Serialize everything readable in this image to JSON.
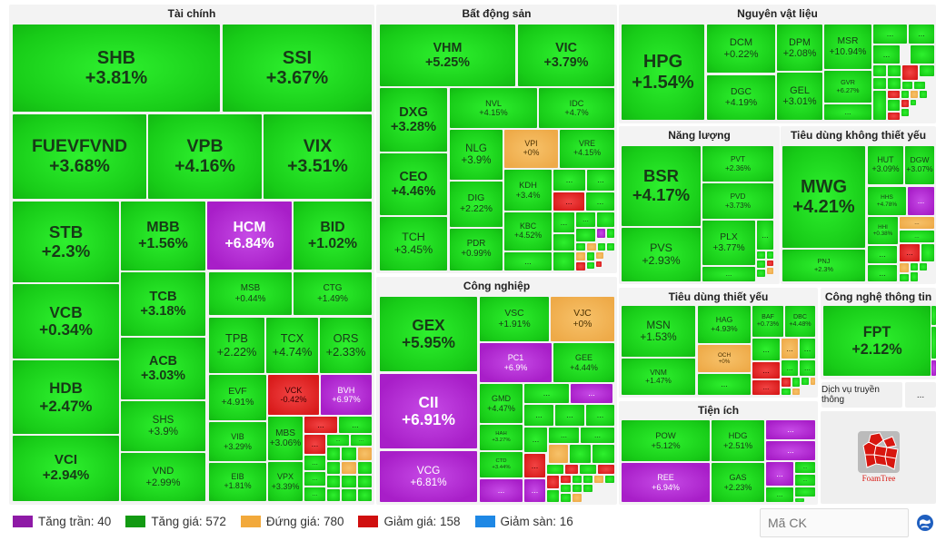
{
  "colors": {
    "ceiling": "#a81ec8",
    "up": "#18cc18",
    "flat": "#eeaa48",
    "down": "#d81a1a",
    "floor": "#1e88e5"
  },
  "groups": [
    {
      "id": "tai-chinh",
      "title": "Tài chính",
      "tiles": [
        {
          "t": "SHB",
          "c": "+3.81%",
          "s": "g"
        },
        {
          "t": "SSI",
          "c": "+3.67%",
          "s": "g"
        },
        {
          "t": "FUEVFVND",
          "c": "+3.68%",
          "s": "g"
        },
        {
          "t": "VPB",
          "c": "+4.16%",
          "s": "g"
        },
        {
          "t": "VIX",
          "c": "+3.51%",
          "s": "g"
        },
        {
          "t": "STB",
          "c": "+2.3%",
          "s": "g"
        },
        {
          "t": "VCB",
          "c": "+0.34%",
          "s": "g"
        },
        {
          "t": "HDB",
          "c": "+2.47%",
          "s": "g"
        },
        {
          "t": "VCI",
          "c": "+2.94%",
          "s": "g"
        },
        {
          "t": "MBB",
          "c": "+1.56%",
          "s": "g"
        },
        {
          "t": "TCB",
          "c": "+3.18%",
          "s": "g"
        },
        {
          "t": "ACB",
          "c": "+3.03%",
          "s": "g"
        },
        {
          "t": "SHS",
          "c": "+3.9%",
          "s": "g"
        },
        {
          "t": "VND",
          "c": "+2.99%",
          "s": "g"
        },
        {
          "t": "HCM",
          "c": "+6.84%",
          "s": "p"
        },
        {
          "t": "BID",
          "c": "+1.02%",
          "s": "g"
        },
        {
          "t": "MSB",
          "c": "+0.44%",
          "s": "g"
        },
        {
          "t": "CTG",
          "c": "+1.49%",
          "s": "g"
        },
        {
          "t": "TPB",
          "c": "+2.22%",
          "s": "g"
        },
        {
          "t": "TCX",
          "c": "+4.74%",
          "s": "g"
        },
        {
          "t": "ORS",
          "c": "+2.33%",
          "s": "g"
        },
        {
          "t": "EVF",
          "c": "+4.91%",
          "s": "g"
        },
        {
          "t": "VCK",
          "c": "-0.42%",
          "s": "r"
        },
        {
          "t": "BVH",
          "c": "+6.97%",
          "s": "p"
        },
        {
          "t": "VIB",
          "c": "+3.29%",
          "s": "g"
        },
        {
          "t": "EIB",
          "c": "+1.81%",
          "s": "g"
        },
        {
          "t": "MBS",
          "c": "+3.06%",
          "s": "g"
        },
        {
          "t": "VPX",
          "c": "+3.39%",
          "s": "g"
        },
        {
          "t": "...",
          "c": "",
          "s": "r"
        },
        {
          "t": "...",
          "c": "",
          "s": "g"
        },
        {
          "t": "...",
          "c": "",
          "s": "r"
        },
        {
          "t": "...",
          "c": "",
          "s": "g"
        },
        {
          "t": "...",
          "c": "",
          "s": "g"
        },
        {
          "t": "...",
          "c": "",
          "s": "g"
        },
        {
          "t": "...",
          "c": "",
          "s": "g"
        },
        {
          "t": "...",
          "c": "",
          "s": "g"
        }
      ]
    },
    {
      "id": "bat-dong-san",
      "title": "Bất động sản",
      "tiles": [
        {
          "t": "VHM",
          "c": "+5.25%",
          "s": "g"
        },
        {
          "t": "VIC",
          "c": "+3.79%",
          "s": "g"
        },
        {
          "t": "DXG",
          "c": "+3.28%",
          "s": "g"
        },
        {
          "t": "CEO",
          "c": "+4.46%",
          "s": "g"
        },
        {
          "t": "TCH",
          "c": "+3.45%",
          "s": "g"
        },
        {
          "t": "NVL",
          "c": "+4.15%",
          "s": "g"
        },
        {
          "t": "IDC",
          "c": "+4.7%",
          "s": "g"
        },
        {
          "t": "NLG",
          "c": "+3.9%",
          "s": "g"
        },
        {
          "t": "VPI",
          "c": "+0%",
          "s": "o"
        },
        {
          "t": "VRE",
          "c": "+4.15%",
          "s": "g"
        },
        {
          "t": "DIG",
          "c": "+2.22%",
          "s": "g"
        },
        {
          "t": "PDR",
          "c": "+0.99%",
          "s": "g"
        },
        {
          "t": "KDH",
          "c": "+3.4%",
          "s": "g"
        },
        {
          "t": "KBC",
          "c": "+4.52%",
          "s": "g"
        },
        {
          "t": "...",
          "c": "",
          "s": "g"
        },
        {
          "t": "...",
          "c": "",
          "s": "g"
        },
        {
          "t": "...",
          "c": "",
          "s": "g"
        },
        {
          "t": "...",
          "c": "",
          "s": "r"
        },
        {
          "t": "...",
          "c": "",
          "s": "g"
        },
        {
          "t": "...",
          "c": "",
          "s": "g"
        },
        {
          "t": "...",
          "c": "",
          "s": "g"
        }
      ]
    },
    {
      "id": "nguyen-vat-lieu",
      "title": "Nguyên vật liệu",
      "tiles": [
        {
          "t": "HPG",
          "c": "+1.54%",
          "s": "g"
        },
        {
          "t": "DCM",
          "c": "+0.22%",
          "s": "g"
        },
        {
          "t": "DGC",
          "c": "+4.19%",
          "s": "g"
        },
        {
          "t": "DPM",
          "c": "+2.08%",
          "s": "g"
        },
        {
          "t": "GEL",
          "c": "+3.01%",
          "s": "g"
        },
        {
          "t": "MSR",
          "c": "+10.94%",
          "s": "g"
        },
        {
          "t": "GVR",
          "c": "+6.27%",
          "s": "g"
        },
        {
          "t": "...",
          "c": "",
          "s": "g"
        },
        {
          "t": "...",
          "c": "",
          "s": "g"
        },
        {
          "t": "...",
          "c": "",
          "s": "g"
        },
        {
          "t": "...",
          "c": "",
          "s": "g"
        }
      ]
    },
    {
      "id": "nang-luong",
      "title": "Năng lượng",
      "tiles": [
        {
          "t": "BSR",
          "c": "+4.17%",
          "s": "g"
        },
        {
          "t": "PVS",
          "c": "+2.93%",
          "s": "g"
        },
        {
          "t": "PVT",
          "c": "+2.36%",
          "s": "g"
        },
        {
          "t": "PVD",
          "c": "+3.73%",
          "s": "g"
        },
        {
          "t": "PLX",
          "c": "+3.77%",
          "s": "g"
        },
        {
          "t": "...",
          "c": "",
          "s": "g"
        },
        {
          "t": "...",
          "c": "",
          "s": "g"
        }
      ]
    },
    {
      "id": "tieu-dung-khong-thiet-yeu",
      "title": "Tiêu dùng không thiết yếu",
      "tiles": [
        {
          "t": "MWG",
          "c": "+4.21%",
          "s": "g"
        },
        {
          "t": "PNJ",
          "c": "+2.3%",
          "s": "g"
        },
        {
          "t": "HUT",
          "c": "+3.09%",
          "s": "g"
        },
        {
          "t": "DGW",
          "c": "+3.07%",
          "s": "g"
        },
        {
          "t": "HHS",
          "c": "+4.78%",
          "s": "g"
        },
        {
          "t": "...",
          "c": "",
          "s": "p"
        },
        {
          "t": "HHI",
          "c": "+0.38%",
          "s": "g"
        },
        {
          "t": "...",
          "c": "",
          "s": "o"
        },
        {
          "t": "...",
          "c": "",
          "s": "g"
        },
        {
          "t": "...",
          "c": "",
          "s": "g"
        },
        {
          "t": "...",
          "c": "",
          "s": "r"
        },
        {
          "t": "...",
          "c": "",
          "s": "g"
        }
      ]
    },
    {
      "id": "cong-nghiep",
      "title": "Công nghiệp",
      "tiles": [
        {
          "t": "GEX",
          "c": "+5.95%",
          "s": "g"
        },
        {
          "t": "CII",
          "c": "+6.91%",
          "s": "p"
        },
        {
          "t": "VCG",
          "c": "+6.81%",
          "s": "p"
        },
        {
          "t": "VSC",
          "c": "+1.91%",
          "s": "g"
        },
        {
          "t": "VJC",
          "c": "+0%",
          "s": "o"
        },
        {
          "t": "PC1",
          "c": "+6.9%",
          "s": "p"
        },
        {
          "t": "GEE",
          "c": "+4.44%",
          "s": "g"
        },
        {
          "t": "GMD",
          "c": "+4.47%",
          "s": "g"
        },
        {
          "t": "HAH",
          "c": "+3.27%",
          "s": "g"
        },
        {
          "t": "CTD",
          "c": "+3.44%",
          "s": "g"
        },
        {
          "t": "...",
          "c": "",
          "s": "p"
        },
        {
          "t": "...",
          "c": "",
          "s": "g"
        },
        {
          "t": "...",
          "c": "",
          "s": "p"
        },
        {
          "t": "...",
          "c": "",
          "s": "g"
        },
        {
          "t": "...",
          "c": "",
          "s": "g"
        },
        {
          "t": "...",
          "c": "",
          "s": "g"
        },
        {
          "t": "...",
          "c": "",
          "s": "g"
        },
        {
          "t": "...",
          "c": "",
          "s": "g"
        },
        {
          "t": "...",
          "c": "",
          "s": "g"
        },
        {
          "t": "...",
          "c": "",
          "s": "r"
        },
        {
          "t": "...",
          "c": "",
          "s": "p"
        }
      ]
    },
    {
      "id": "tieu-dung-thiet-yeu",
      "title": "Tiêu dùng thiết yếu",
      "tiles": [
        {
          "t": "MSN",
          "c": "+1.53%",
          "s": "g"
        },
        {
          "t": "VNM",
          "c": "+1.47%",
          "s": "g"
        },
        {
          "t": "HAG",
          "c": "+4.93%",
          "s": "g"
        },
        {
          "t": "OCH",
          "c": "+0%",
          "s": "o"
        },
        {
          "t": "...",
          "c": "",
          "s": "g"
        },
        {
          "t": "BAF",
          "c": "+0.73%",
          "s": "g"
        },
        {
          "t": "DBC",
          "c": "+4.48%",
          "s": "g"
        },
        {
          "t": "...",
          "c": "",
          "s": "g"
        },
        {
          "t": "...",
          "c": "",
          "s": "o"
        },
        {
          "t": "...",
          "c": "",
          "s": "g"
        },
        {
          "t": "...",
          "c": "",
          "s": "r"
        },
        {
          "t": "...",
          "c": "",
          "s": "g"
        },
        {
          "t": "...",
          "c": "",
          "s": "g"
        },
        {
          "t": "...",
          "c": "",
          "s": "r"
        }
      ]
    },
    {
      "id": "tien-ich",
      "title": "Tiện ích",
      "tiles": [
        {
          "t": "POW",
          "c": "+5.12%",
          "s": "g"
        },
        {
          "t": "REE",
          "c": "+6.94%",
          "s": "p"
        },
        {
          "t": "HDG",
          "c": "+2.51%",
          "s": "g"
        },
        {
          "t": "GAS",
          "c": "+2.23%",
          "s": "g"
        },
        {
          "t": "...",
          "c": "",
          "s": "p"
        },
        {
          "t": "...",
          "c": "",
          "s": "p"
        },
        {
          "t": "...",
          "c": "",
          "s": "p"
        },
        {
          "t": "...",
          "c": "",
          "s": "g"
        },
        {
          "t": "...",
          "c": "",
          "s": "g"
        },
        {
          "t": "...",
          "c": "",
          "s": "g"
        }
      ]
    },
    {
      "id": "cong-nghe-thong-tin",
      "title": "Công nghệ thông tin",
      "tiles": [
        {
          "t": "FPT",
          "c": "+2.12%",
          "s": "g"
        }
      ]
    }
  ],
  "media": {
    "title": "Dịch vụ truyền thông",
    "more": "..."
  },
  "logo": {
    "text": "FoamTree"
  },
  "legend": [
    {
      "label": "Tăng trần: 40",
      "color": "#8e1aa6"
    },
    {
      "label": "Tăng giá: 572",
      "color": "#139a13"
    },
    {
      "label": "Đứng giá: 780",
      "color": "#f2a93b"
    },
    {
      "label": "Giảm giá: 158",
      "color": "#d00f0f"
    },
    {
      "label": "Giảm sàn: 16",
      "color": "#1e88e5"
    }
  ],
  "search": {
    "placeholder": "Mã CK"
  }
}
